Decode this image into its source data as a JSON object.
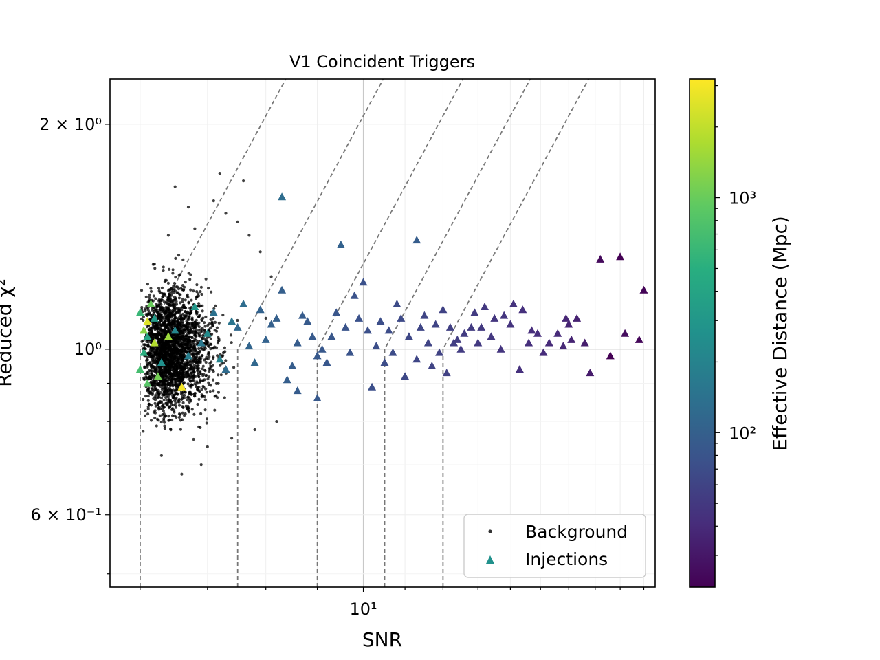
{
  "chart_data": {
    "type": "scatter",
    "title": "V1 Coincident Triggers",
    "xlabel": "SNR",
    "ylabel": "Reduced χ²",
    "xscale": "log",
    "yscale": "log",
    "xlim": [
      5.6,
      19.5
    ],
    "ylim": [
      0.48,
      2.3
    ],
    "grid": true,
    "x_ticks": [
      {
        "value": 10,
        "label": "10¹"
      }
    ],
    "y_ticks": [
      {
        "value": 0.6,
        "label": "6 × 10⁻¹"
      },
      {
        "value": 1.0,
        "label": "10⁰"
      },
      {
        "value": 2.0,
        "label": "2 × 10⁰"
      }
    ],
    "legend": {
      "position": "lower-right",
      "entries": [
        "Background",
        "Injections"
      ]
    },
    "colorbar": {
      "label": "Effective Distance (Mpc)",
      "scale": "log",
      "range": [
        22,
        3200
      ],
      "colormap": "viridis",
      "ticks": [
        {
          "value": 100,
          "label": "10²"
        },
        {
          "value": 1000,
          "label": "10³"
        }
      ]
    },
    "contour_lines": [
      {
        "snr_threshold": 6.0,
        "style": "dashed"
      },
      {
        "snr_threshold": 7.5,
        "style": "dashed"
      },
      {
        "snr_threshold": 9.0,
        "style": "dashed"
      },
      {
        "snr_threshold": 10.5,
        "style": "dashed"
      },
      {
        "snr_threshold": 12.0,
        "style": "dashed"
      }
    ],
    "series": [
      {
        "name": "Background",
        "marker": "dot",
        "color": "#000000",
        "approx_region": {
          "snr_range": [
            6.0,
            8.2
          ],
          "chi2_range": [
            0.68,
            1.75
          ]
        },
        "points": [
          [
            6.5,
            1.65
          ],
          [
            7.2,
            1.72
          ],
          [
            7.6,
            1.68
          ],
          [
            6.8,
            1.45
          ],
          [
            7.3,
            1.52
          ],
          [
            7.1,
            1.58
          ],
          [
            6.4,
            1.42
          ],
          [
            7.9,
            1.35
          ],
          [
            8.1,
            1.25
          ],
          [
            7.5,
            1.48
          ],
          [
            6.2,
            1.3
          ],
          [
            6.9,
            0.7
          ],
          [
            6.3,
            0.72
          ],
          [
            7.0,
            0.74
          ],
          [
            7.4,
            0.76
          ],
          [
            7.8,
            0.78
          ],
          [
            8.2,
            0.8
          ],
          [
            6.6,
            0.68
          ],
          [
            6.1,
            0.88
          ],
          [
            8.0,
            1.1
          ],
          [
            7.7,
            1.42
          ],
          [
            6.7,
            1.55
          ]
        ]
      },
      {
        "name": "Injections",
        "marker": "triangle",
        "points": [
          [
            8.3,
            1.6,
            130
          ],
          [
            9.5,
            1.38,
            105
          ],
          [
            11.3,
            1.4,
            95
          ],
          [
            17.2,
            1.32,
            25
          ],
          [
            18.0,
            1.33,
            22
          ],
          [
            19.0,
            1.2,
            23
          ],
          [
            18.2,
            1.05,
            26
          ],
          [
            18.8,
            1.03,
            24
          ],
          [
            17.6,
            0.98,
            22
          ],
          [
            16.8,
            0.93,
            32
          ],
          [
            16.3,
            1.1,
            35
          ],
          [
            16.0,
            1.08,
            36
          ],
          [
            15.6,
            1.05,
            40
          ],
          [
            15.3,
            1.02,
            40
          ],
          [
            14.9,
            1.05,
            42
          ],
          [
            14.4,
            1.13,
            44
          ],
          [
            14.1,
            1.15,
            45
          ],
          [
            14.3,
            0.94,
            44
          ],
          [
            13.5,
            1.1,
            48
          ],
          [
            13.2,
            1.14,
            50
          ],
          [
            12.9,
            1.12,
            52
          ],
          [
            12.6,
            1.05,
            52
          ],
          [
            12.3,
            1.02,
            55
          ],
          [
            12.0,
            1.13,
            58
          ],
          [
            11.8,
            1.08,
            60
          ],
          [
            11.6,
            1.02,
            60
          ],
          [
            11.3,
            0.97,
            62
          ],
          [
            11.0,
            0.92,
            65
          ],
          [
            10.8,
            1.15,
            68
          ],
          [
            10.6,
            1.06,
            70
          ],
          [
            10.3,
            1.01,
            72
          ],
          [
            10.0,
            1.23,
            75
          ],
          [
            9.8,
            1.18,
            78
          ],
          [
            9.6,
            1.07,
            80
          ],
          [
            9.4,
            1.12,
            82
          ],
          [
            9.2,
            0.96,
            85
          ],
          [
            9.0,
            0.86,
            88
          ],
          [
            8.9,
            1.04,
            90
          ],
          [
            8.7,
            1.11,
            92
          ],
          [
            8.5,
            0.95,
            95
          ],
          [
            8.3,
            1.2,
            98
          ],
          [
            8.1,
            1.08,
            100
          ],
          [
            7.9,
            1.13,
            105
          ],
          [
            7.7,
            1.01,
            110
          ],
          [
            7.5,
            1.07,
            118
          ],
          [
            7.3,
            0.94,
            125
          ],
          [
            7.1,
            1.12,
            140
          ],
          [
            6.9,
            1.02,
            160
          ],
          [
            6.7,
            0.98,
            180
          ],
          [
            6.5,
            1.06,
            210
          ],
          [
            6.3,
            0.96,
            260
          ],
          [
            6.2,
            1.1,
            320
          ],
          [
            6.1,
            1.04,
            400
          ],
          [
            6.05,
            0.99,
            500
          ],
          [
            6.0,
            1.12,
            600
          ],
          [
            6.0,
            0.94,
            700
          ],
          [
            6.1,
            0.9,
            850
          ],
          [
            6.15,
            1.15,
            1000
          ],
          [
            6.05,
            1.06,
            1300
          ],
          [
            6.2,
            1.02,
            1800
          ],
          [
            6.6,
            0.89,
            3000
          ],
          [
            6.1,
            1.09,
            2500
          ],
          [
            6.4,
            1.04,
            1500
          ],
          [
            6.25,
            0.92,
            1100
          ],
          [
            6.8,
            1.14,
            300
          ],
          [
            7.0,
            1.05,
            240
          ],
          [
            7.2,
            0.97,
            200
          ],
          [
            7.4,
            1.09,
            150
          ],
          [
            7.6,
            1.15,
            130
          ],
          [
            7.8,
            0.96,
            115
          ],
          [
            8.0,
            1.03,
            105
          ],
          [
            8.2,
            1.1,
            100
          ],
          [
            8.4,
            0.91,
            97
          ],
          [
            8.6,
            1.02,
            93
          ],
          [
            8.8,
            1.09,
            90
          ],
          [
            9.1,
            1.0,
            86
          ],
          [
            9.3,
            1.04,
            84
          ],
          [
            9.7,
            0.99,
            79
          ],
          [
            9.9,
            1.1,
            77
          ],
          [
            10.1,
            1.06,
            74
          ],
          [
            10.4,
            1.09,
            71
          ],
          [
            10.7,
            0.99,
            69
          ],
          [
            10.9,
            1.1,
            67
          ],
          [
            11.1,
            1.04,
            64
          ],
          [
            11.5,
            1.11,
            61
          ],
          [
            11.9,
            0.99,
            59
          ],
          [
            12.2,
            1.07,
            56
          ],
          [
            12.5,
            1.0,
            53
          ],
          [
            12.8,
            1.07,
            52
          ],
          [
            13.0,
            1.02,
            51
          ],
          [
            13.4,
            1.04,
            49
          ],
          [
            13.7,
            1.0,
            47
          ],
          [
            14.0,
            1.08,
            46
          ],
          [
            14.6,
            1.02,
            43
          ],
          [
            15.1,
            0.99,
            41
          ],
          [
            15.8,
            1.01,
            38
          ],
          [
            16.6,
            1.02,
            33
          ],
          [
            15.9,
            1.1,
            37
          ],
          [
            13.8,
            1.11,
            47
          ],
          [
            12.1,
            0.93,
            57
          ],
          [
            11.7,
            0.95,
            60
          ],
          [
            10.5,
            0.96,
            70
          ],
          [
            9.0,
            0.98,
            88
          ],
          [
            8.6,
            0.88,
            93
          ],
          [
            10.2,
            0.89,
            73
          ],
          [
            12.4,
            1.03,
            54
          ],
          [
            13.1,
            1.07,
            50
          ],
          [
            14.7,
            1.06,
            42
          ],
          [
            16.1,
            1.03,
            36
          ],
          [
            11.4,
            1.07,
            62
          ]
        ]
      }
    ]
  }
}
